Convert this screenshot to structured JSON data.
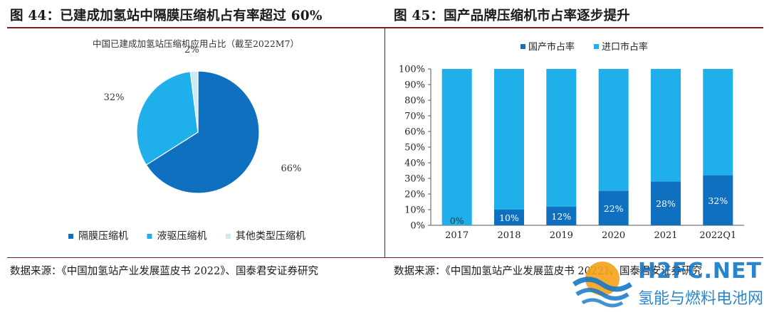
{
  "figure44": {
    "title": "图 44：已建成加氢站中隔膜压缩机占有率超过 60%",
    "source": "数据来源：《中国加氢站产业发展蓝皮书 2022》、国泰君安证券研究"
  },
  "figure45": {
    "title": "图 45：国产品牌压缩机市占率逐步提升",
    "source": "数据来源：《中国加氢站产业发展蓝皮书 2022》、国泰君安证券研究"
  },
  "watermark": {
    "text": "H2FC.NET",
    "subtext": "氢能与燃料电池网"
  },
  "colors": {
    "dark_blue": "#1070c0",
    "light_blue": "#1fb0ec",
    "pale_blue": "#cfe9f4",
    "header_rule": "#7a1d20"
  },
  "chart_data": [
    {
      "type": "pie",
      "title": "中国已建成加氢站压缩机应用占比（截至2022M7）",
      "slices": [
        {
          "name": "隔膜压缩机",
          "value": 66,
          "label": "66%",
          "color": "#1070c0"
        },
        {
          "name": "液驱压缩机",
          "value": 32,
          "label": "32%",
          "color": "#1fb0ec"
        },
        {
          "name": "其他类型压缩机",
          "value": 2,
          "label": "2%",
          "color": "#cfe9f4"
        }
      ],
      "legend_position": "bottom"
    },
    {
      "type": "bar",
      "stacked": true,
      "categories": [
        "2017",
        "2018",
        "2019",
        "2020",
        "2021",
        "2022Q1"
      ],
      "series": [
        {
          "name": "国产市占率",
          "values": [
            0,
            10,
            12,
            22,
            28,
            32
          ],
          "labels": [
            "0%",
            "10%",
            "12%",
            "22%",
            "28%",
            "32%"
          ],
          "color": "#1070c0"
        },
        {
          "name": "进口市占率",
          "values": [
            100,
            90,
            88,
            78,
            72,
            68
          ],
          "color": "#1fb0ec"
        }
      ],
      "ylim": [
        0,
        100
      ],
      "yticks": [
        "0%",
        "10%",
        "20%",
        "30%",
        "40%",
        "50%",
        "60%",
        "70%",
        "80%",
        "90%",
        "100%"
      ],
      "legend_position": "top"
    }
  ]
}
